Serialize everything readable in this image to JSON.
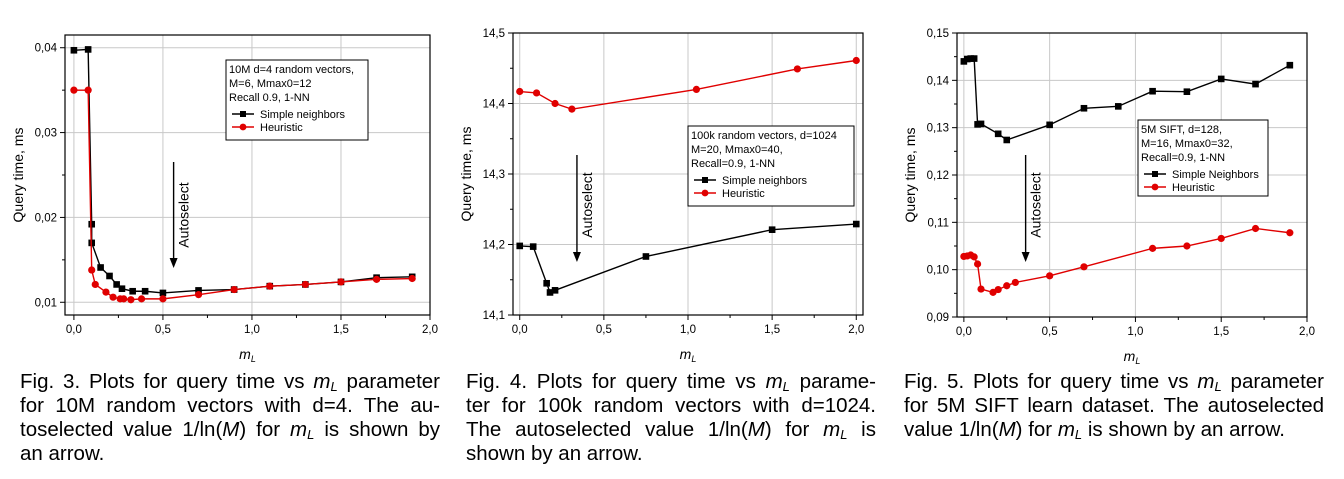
{
  "chart_data": [
    {
      "type": "line",
      "xlim": [
        -0.05,
        2.0
      ],
      "ylim": [
        0.0085,
        0.0415
      ],
      "xticks": [
        0.0,
        0.5,
        1.0,
        1.5,
        2.0
      ],
      "xtick_labels": [
        "0,0",
        "0,5",
        "1,0",
        "1,5",
        "2,0"
      ],
      "yticks": [
        0.01,
        0.02,
        0.03,
        0.04
      ],
      "ytick_labels": [
        "0,01",
        "0,02",
        "0,03",
        "0,04"
      ],
      "xlabel": "m",
      "xlabel_sub": "L",
      "ylabel": "Query time, ms",
      "grid": true,
      "legend_position": "top-right",
      "legend_lines": [
        "10M d=4 random vectors,",
        "M=6, Mmax0=12",
        "Recall 0.9, 1-NN"
      ],
      "annotation": "Autoselect",
      "arrow_x": 0.56,
      "series": [
        {
          "name": "Simple neighbors",
          "color": "#000000",
          "marker": "square",
          "x": [
            0.0,
            0.08,
            0.1,
            0.1,
            0.15,
            0.2,
            0.24,
            0.27,
            0.33,
            0.4,
            0.5,
            0.7,
            0.9,
            1.1,
            1.3,
            1.5,
            1.7,
            1.9
          ],
          "y": [
            0.0397,
            0.0398,
            0.0192,
            0.017,
            0.0141,
            0.0131,
            0.0121,
            0.0116,
            0.0113,
            0.0113,
            0.0111,
            0.0114,
            0.0115,
            0.0119,
            0.0121,
            0.0124,
            0.0129,
            0.013
          ]
        },
        {
          "name": "Heuristic",
          "color": "#e00000",
          "marker": "circle",
          "x": [
            0.0,
            0.08,
            0.1,
            0.12,
            0.18,
            0.22,
            0.26,
            0.28,
            0.32,
            0.38,
            0.5,
            0.7,
            0.9,
            1.1,
            1.3,
            1.5,
            1.7,
            1.9
          ],
          "y": [
            0.035,
            0.035,
            0.0138,
            0.0121,
            0.0112,
            0.0106,
            0.0104,
            0.0104,
            0.0103,
            0.0104,
            0.0104,
            0.0109,
            0.0115,
            0.0119,
            0.0121,
            0.0124,
            0.0127,
            0.0128
          ]
        }
      ]
    },
    {
      "type": "line",
      "xlim": [
        -0.04,
        2.04
      ],
      "ylim": [
        14.1,
        14.5
      ],
      "xticks": [
        0.0,
        0.5,
        1.0,
        1.5,
        2.0
      ],
      "xtick_labels": [
        "0,0",
        "0,5",
        "1,0",
        "1,5",
        "2,0"
      ],
      "yticks": [
        14.1,
        14.2,
        14.3,
        14.4,
        14.5
      ],
      "ytick_labels": [
        "14,1",
        "14,2",
        "14,3",
        "14,4",
        "14,5"
      ],
      "xlabel": "m",
      "xlabel_sub": "L",
      "ylabel": "Query time, ms",
      "grid": true,
      "legend_position": "right",
      "legend_lines": [
        "100k random vectors, d=1024",
        "M=20, Mmax0=40,",
        "Recall=0.9, 1-NN"
      ],
      "annotation": "Autoselect",
      "arrow_x": 0.34,
      "series": [
        {
          "name": "Simple neighbors",
          "color": "#000000",
          "marker": "square",
          "x": [
            0.0,
            0.08,
            0.16,
            0.18,
            0.21,
            0.75,
            1.5,
            2.0
          ],
          "y": [
            14.198,
            14.197,
            14.145,
            14.132,
            14.135,
            14.183,
            14.221,
            14.229
          ]
        },
        {
          "name": "Heuristic",
          "color": "#e00000",
          "marker": "circle",
          "x": [
            0.0,
            0.1,
            0.21,
            0.31,
            1.05,
            1.65,
            2.0
          ],
          "y": [
            14.417,
            14.415,
            14.4,
            14.392,
            14.42,
            14.449,
            14.461
          ]
        }
      ]
    },
    {
      "type": "line",
      "xlim": [
        -0.04,
        2.0
      ],
      "ylim": [
        0.09,
        0.15
      ],
      "xticks": [
        0.0,
        0.5,
        1.0,
        1.5,
        2.0
      ],
      "xtick_labels": [
        "0,0",
        "0,5",
        "1,0",
        "1,5",
        "2,0"
      ],
      "yticks": [
        0.09,
        0.1,
        0.11,
        0.12,
        0.13,
        0.14,
        0.15
      ],
      "ytick_labels": [
        "0,09",
        "0,10",
        "0,11",
        "0,12",
        "0,13",
        "0,14",
        "0,15"
      ],
      "xlabel": "m",
      "xlabel_sub": "L",
      "ylabel": "Query time, ms",
      "grid": true,
      "legend_position": "center",
      "legend_lines": [
        "5M SIFT, d=128,",
        "M=16, Mmax0=32,",
        "Recall=0.9, 1-NN"
      ],
      "annotation": "Autoselect",
      "arrow_x": 0.36,
      "series": [
        {
          "name": "Simple Neighbors",
          "color": "#000000",
          "marker": "square",
          "x": [
            0.0,
            0.02,
            0.04,
            0.06,
            0.08,
            0.1,
            0.2,
            0.25,
            0.5,
            0.7,
            0.9,
            1.1,
            1.3,
            1.5,
            1.7,
            1.9
          ],
          "y": [
            0.144,
            0.1445,
            0.1446,
            0.1446,
            0.1307,
            0.1308,
            0.1287,
            0.1274,
            0.1306,
            0.1341,
            0.1345,
            0.1377,
            0.1376,
            0.1403,
            0.1392,
            0.1432
          ]
        },
        {
          "name": "Heuristic",
          "color": "#e00000",
          "marker": "circle",
          "x": [
            0.0,
            0.02,
            0.04,
            0.06,
            0.08,
            0.1,
            0.17,
            0.2,
            0.25,
            0.3,
            0.5,
            0.7,
            1.1,
            1.3,
            1.5,
            1.7,
            1.9
          ],
          "y": [
            0.1028,
            0.1029,
            0.1031,
            0.1027,
            0.1012,
            0.0959,
            0.0952,
            0.0958,
            0.0966,
            0.0973,
            0.0987,
            0.1006,
            0.1045,
            0.105,
            0.1066,
            0.1087,
            0.1078
          ]
        }
      ]
    }
  ],
  "captions": [
    {
      "label": "Fig. 3.",
      "lines": [
        [
          "Fig. 3. Plots for query time vs ",
          "m",
          "L",
          " parameter"
        ],
        [
          "for 10M random vectors with d=4. The au-"
        ],
        [
          "toselected value 1/ln(",
          "M",
          ") for ",
          "m",
          "L",
          " is shown by"
        ],
        [
          "an arrow."
        ]
      ]
    },
    {
      "label": "Fig. 4.",
      "lines": [
        [
          "Fig. 4. Plots for query time vs ",
          "m",
          "L",
          " parame-"
        ],
        [
          "ter for 100k random vectors with d=1024."
        ],
        [
          "The autoselected value 1/ln(",
          "M",
          ") for ",
          "m",
          "L",
          " is"
        ],
        [
          "shown by an arrow."
        ]
      ]
    },
    {
      "label": "Fig. 5.",
      "lines": [
        [
          "Fig. 5. Plots for query time vs ",
          "m",
          "L",
          " parameter"
        ],
        [
          "for 5M SIFT learn dataset. The autoselected"
        ],
        [
          "value 1/ln(",
          "M",
          ") for ",
          "m",
          "L",
          " is shown by an arrow."
        ]
      ]
    }
  ]
}
